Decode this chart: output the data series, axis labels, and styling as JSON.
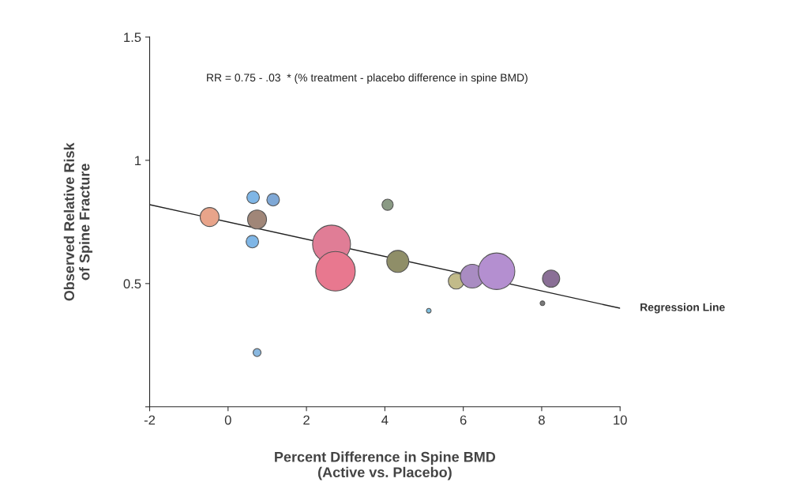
{
  "chart_data": {
    "type": "bubble",
    "xlabel": "Percent Difference in Spine BMD\n(Active vs. Placebo)",
    "ylabel": "Observed Relative Risk\nof Spine Fracture",
    "annotations": [
      "RR = 0.75 - .03  * (% treatment - placebo difference in spine BMD)"
    ],
    "series": [
      {
        "x": [
          -0.47,
          0.64,
          1.15,
          0.74,
          0.62,
          0.74,
          2.64,
          2.74,
          4.07,
          4.33,
          5.12,
          5.82,
          6.23,
          6.85,
          8.24,
          8.02
        ],
        "values": [
          0.77,
          0.85,
          0.84,
          0.76,
          0.67,
          0.22,
          0.66,
          0.55,
          0.82,
          0.59,
          0.39,
          0.51,
          0.53,
          0.55,
          0.52,
          0.42
        ],
        "sizes": [
          0.23,
          0.1,
          0.1,
          0.23,
          0.1,
          0.04,
          0.92,
          1,
          0.08,
          0.31,
          0.014,
          0.16,
          0.36,
          0.85,
          0.19,
          0.014
        ],
        "colors": [
          "#e8a48a",
          "#7fb6e6",
          "#7fa8d6",
          "#a08678",
          "#7fb6e6",
          "#8ab8e0",
          "#e07d96",
          "#e8788f",
          "#8a9a84",
          "#8f8e68",
          "#7fc0e0",
          "#c2bb8a",
          "#a98cc2",
          "#b48fd0",
          "#8a6f96",
          "#7a7a7a"
        ]
      },
      {
        "type": "line",
        "name": "Regression Line",
        "x": [
          -2,
          10
        ],
        "values": [
          0.82,
          0.4
        ],
        "color": "#222222"
      }
    ],
    "xlim": [
      -2,
      10
    ],
    "xticks": [
      -2,
      0,
      2,
      4,
      6,
      8,
      10
    ],
    "ylim": [
      0,
      1.5
    ],
    "yticks": [
      {
        "value": 0,
        "label": null
      },
      {
        "value": 0.5,
        "label": "0.5"
      },
      1,
      1.5
    ]
  }
}
